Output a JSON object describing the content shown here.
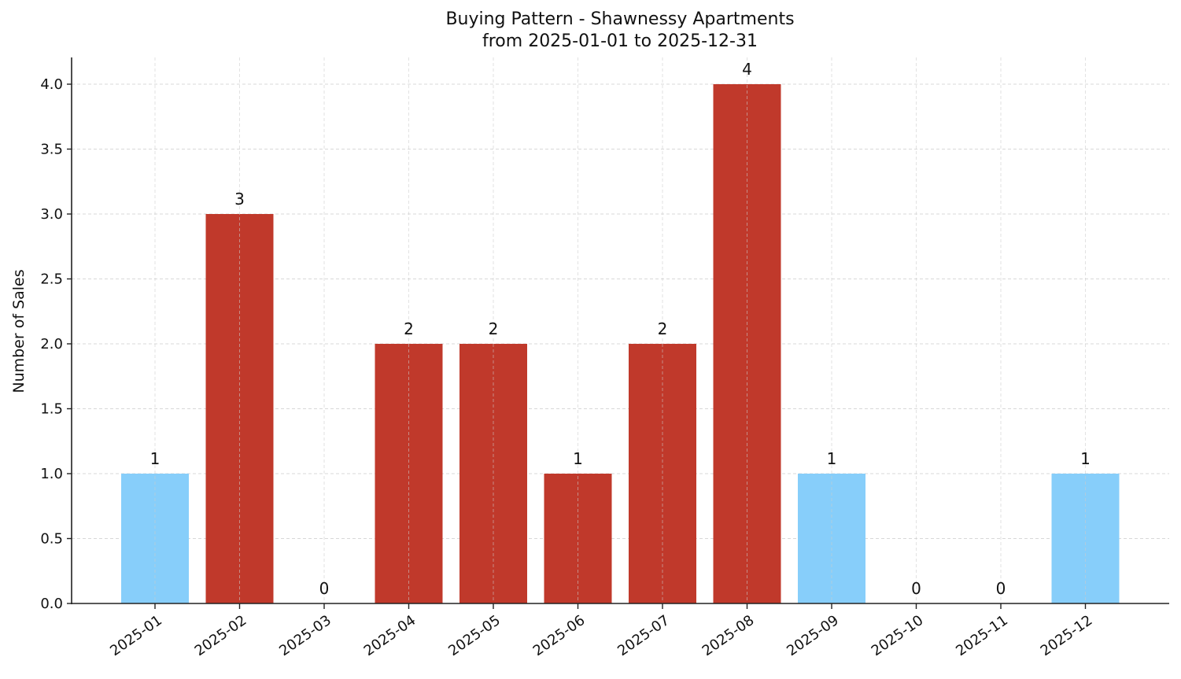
{
  "chart_data": {
    "type": "bar",
    "title": "Buying Pattern - Shawnessy Apartments",
    "subtitle": "from 2025-01-01 to 2025-12-31",
    "xlabel": "",
    "ylabel": "Number of Sales",
    "ylim": [
      0,
      4.2
    ],
    "yticks": [
      "0.0",
      "0.5",
      "1.0",
      "1.5",
      "2.0",
      "2.5",
      "3.0",
      "3.5",
      "4.0"
    ],
    "grid": true,
    "legend": null,
    "categories": [
      "2025-01",
      "2025-02",
      "2025-03",
      "2025-04",
      "2025-05",
      "2025-06",
      "2025-07",
      "2025-08",
      "2025-09",
      "2025-10",
      "2025-11",
      "2025-12"
    ],
    "values": [
      1,
      3,
      0,
      2,
      2,
      1,
      2,
      4,
      1,
      0,
      0,
      1
    ],
    "bar_colors": [
      "#87CEFA",
      "#C0392B",
      "#C0392B",
      "#C0392B",
      "#C0392B",
      "#C0392B",
      "#C0392B",
      "#C0392B",
      "#87CEFA",
      "#C0392B",
      "#C0392B",
      "#87CEFA"
    ],
    "colors": {
      "high": "#C0392B",
      "low": "#87CEFA"
    },
    "data_labels": [
      "1",
      "3",
      "0",
      "2",
      "2",
      "1",
      "2",
      "4",
      "1",
      "0",
      "0",
      "1"
    ]
  }
}
